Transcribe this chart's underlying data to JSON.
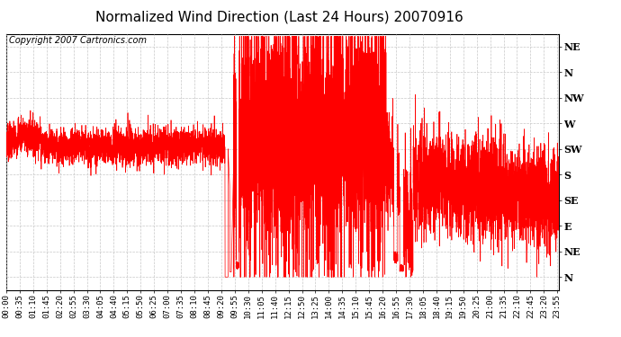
{
  "title": "Normalized Wind Direction (Last 24 Hours) 20070916",
  "copyright_text": "Copyright 2007 Cartronics.com",
  "line_color": "#ff0000",
  "bg_color": "#ffffff",
  "grid_color": "#c8c8c8",
  "y_labels": [
    "NE",
    "N",
    "NW",
    "W",
    "SW",
    "S",
    "SE",
    "E",
    "NE",
    "N"
  ],
  "y_values": [
    10,
    9,
    8,
    7,
    6,
    5,
    4,
    3,
    2,
    1
  ],
  "y_min": 0.5,
  "y_max": 10.5,
  "title_fontsize": 11,
  "copyright_fontsize": 7,
  "label_fontsize": 8,
  "tick_fontsize": 6.5,
  "line_width": 0.5
}
